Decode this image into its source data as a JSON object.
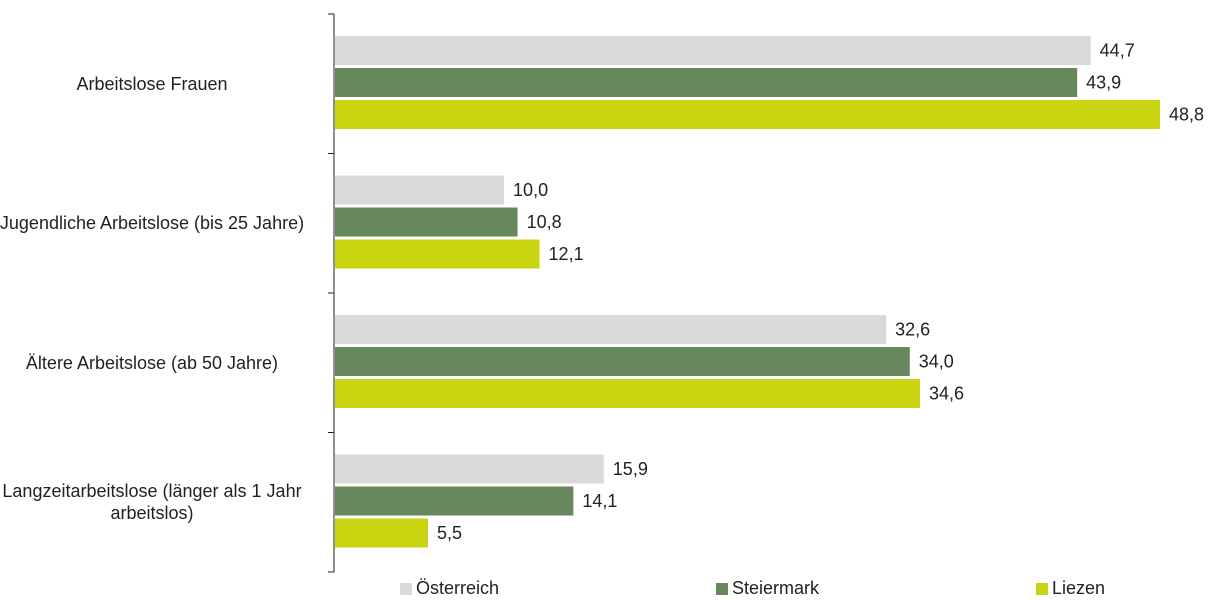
{
  "chart_data": {
    "type": "bar",
    "orientation": "horizontal",
    "categories": [
      "Arbeitslose Frauen",
      "Jugendliche Arbeitslose (bis 25 Jahre)",
      "Ältere Arbeitslose (ab 50 Jahre)",
      "Langzeitarbeitslose (länger als 1 Jahr arbeitslos)"
    ],
    "series": [
      {
        "name": "Österreich",
        "color": "#d9d9d9",
        "values": [
          44.7,
          10.0,
          32.6,
          15.9
        ],
        "labels": [
          "44,7",
          "10,0",
          "32,6",
          "15,9"
        ]
      },
      {
        "name": "Steiermark",
        "color": "#66885c",
        "values": [
          43.9,
          10.8,
          34.0,
          14.1
        ],
        "labels": [
          "43,9",
          "10,8",
          "34,0",
          "14,1"
        ]
      },
      {
        "name": "Liezen",
        "color": "#c8d510",
        "values": [
          48.8,
          12.1,
          34.6,
          5.5
        ],
        "labels": [
          "48,8",
          "12,1",
          "34,6",
          "5,5"
        ]
      }
    ],
    "xlim": [
      0,
      50
    ],
    "grid": false,
    "legend_position": "bottom"
  }
}
